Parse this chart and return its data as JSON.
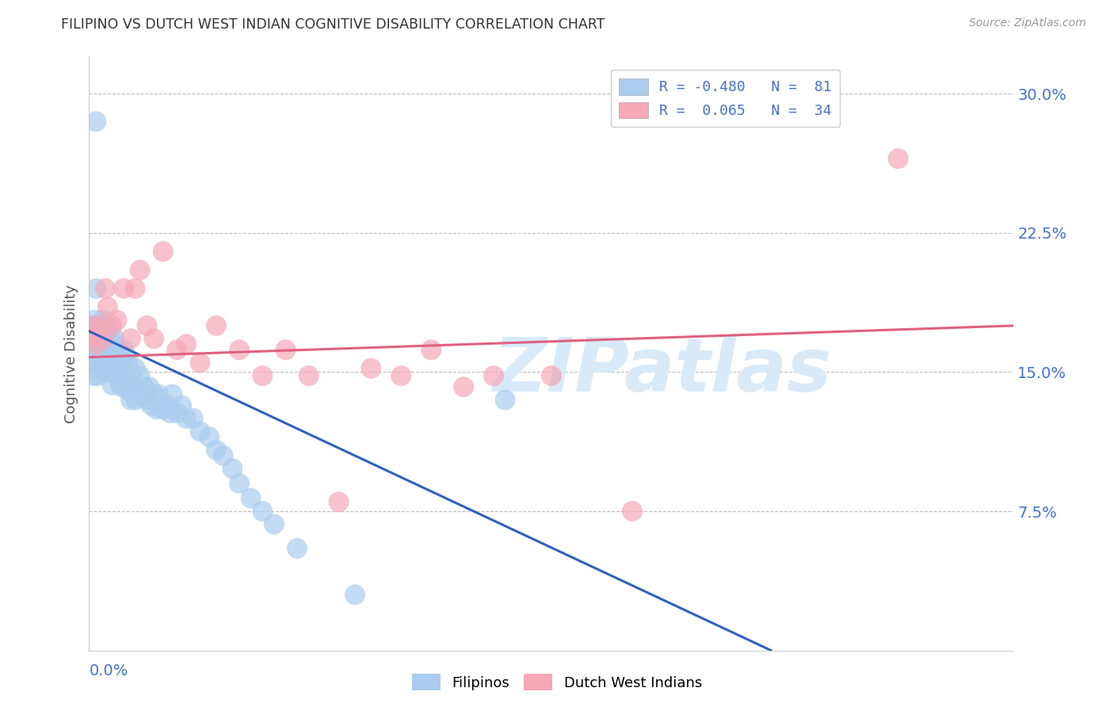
{
  "title": "FILIPINO VS DUTCH WEST INDIAN COGNITIVE DISABILITY CORRELATION CHART",
  "source": "Source: ZipAtlas.com",
  "ylabel": "Cognitive Disability",
  "xlim": [
    0.0,
    0.4
  ],
  "ylim": [
    0.0,
    0.32
  ],
  "right_ytick_vals": [
    0.3,
    0.225,
    0.15,
    0.075
  ],
  "right_ytick_labels": [
    "30.0%",
    "22.5%",
    "15.0%",
    "7.5%"
  ],
  "filipino_color": "#aaccee",
  "dutch_color": "#f4a8b8",
  "filipino_line_color": "#3060c0",
  "dutch_line_color": "#e06080",
  "watermark_text": "ZIPatlas",
  "watermark_color": "#d8eaf8",
  "legend_color": "#4472c4",
  "legend_items": [
    {
      "label": "R = -0.480   N =  81"
    },
    {
      "label": "R =  0.065   N =  34"
    }
  ],
  "bottom_legend": [
    "Filipinos",
    "Dutch West Indians"
  ],
  "fil_x": [
    0.001,
    0.001,
    0.001,
    0.001,
    0.002,
    0.002,
    0.002,
    0.002,
    0.002,
    0.003,
    0.003,
    0.003,
    0.003,
    0.004,
    0.004,
    0.004,
    0.005,
    0.005,
    0.005,
    0.006,
    0.006,
    0.006,
    0.007,
    0.007,
    0.007,
    0.008,
    0.008,
    0.008,
    0.009,
    0.009,
    0.01,
    0.01,
    0.01,
    0.011,
    0.011,
    0.012,
    0.012,
    0.013,
    0.013,
    0.014,
    0.014,
    0.015,
    0.015,
    0.016,
    0.016,
    0.017,
    0.017,
    0.018,
    0.018,
    0.019,
    0.02,
    0.02,
    0.022,
    0.023,
    0.024,
    0.025,
    0.026,
    0.027,
    0.028,
    0.029,
    0.03,
    0.032,
    0.034,
    0.035,
    0.036,
    0.038,
    0.04,
    0.042,
    0.045,
    0.048,
    0.052,
    0.055,
    0.058,
    0.062,
    0.065,
    0.07,
    0.075,
    0.08,
    0.09,
    0.115,
    0.18
  ],
  "fil_y": [
    0.175,
    0.168,
    0.162,
    0.155,
    0.178,
    0.17,
    0.162,
    0.155,
    0.148,
    0.285,
    0.195,
    0.175,
    0.165,
    0.168,
    0.158,
    0.148,
    0.175,
    0.162,
    0.152,
    0.178,
    0.168,
    0.155,
    0.175,
    0.162,
    0.15,
    0.172,
    0.162,
    0.15,
    0.168,
    0.155,
    0.165,
    0.155,
    0.143,
    0.168,
    0.152,
    0.162,
    0.148,
    0.158,
    0.145,
    0.155,
    0.142,
    0.162,
    0.148,
    0.158,
    0.142,
    0.155,
    0.14,
    0.148,
    0.135,
    0.142,
    0.152,
    0.135,
    0.148,
    0.138,
    0.142,
    0.135,
    0.142,
    0.132,
    0.138,
    0.13,
    0.138,
    0.13,
    0.132,
    0.128,
    0.138,
    0.128,
    0.132,
    0.125,
    0.125,
    0.118,
    0.115,
    0.108,
    0.105,
    0.098,
    0.09,
    0.082,
    0.075,
    0.068,
    0.055,
    0.03,
    0.135
  ],
  "dutch_x": [
    0.001,
    0.002,
    0.003,
    0.004,
    0.005,
    0.006,
    0.007,
    0.008,
    0.01,
    0.012,
    0.015,
    0.018,
    0.02,
    0.022,
    0.025,
    0.028,
    0.032,
    0.038,
    0.042,
    0.048,
    0.055,
    0.065,
    0.075,
    0.085,
    0.095,
    0.108,
    0.122,
    0.135,
    0.148,
    0.162,
    0.175,
    0.2,
    0.235,
    0.35
  ],
  "dutch_y": [
    0.168,
    0.175,
    0.165,
    0.172,
    0.175,
    0.168,
    0.195,
    0.185,
    0.175,
    0.178,
    0.195,
    0.168,
    0.195,
    0.205,
    0.175,
    0.168,
    0.215,
    0.162,
    0.165,
    0.155,
    0.175,
    0.162,
    0.148,
    0.162,
    0.148,
    0.08,
    0.152,
    0.148,
    0.162,
    0.142,
    0.148,
    0.148,
    0.075,
    0.265
  ]
}
